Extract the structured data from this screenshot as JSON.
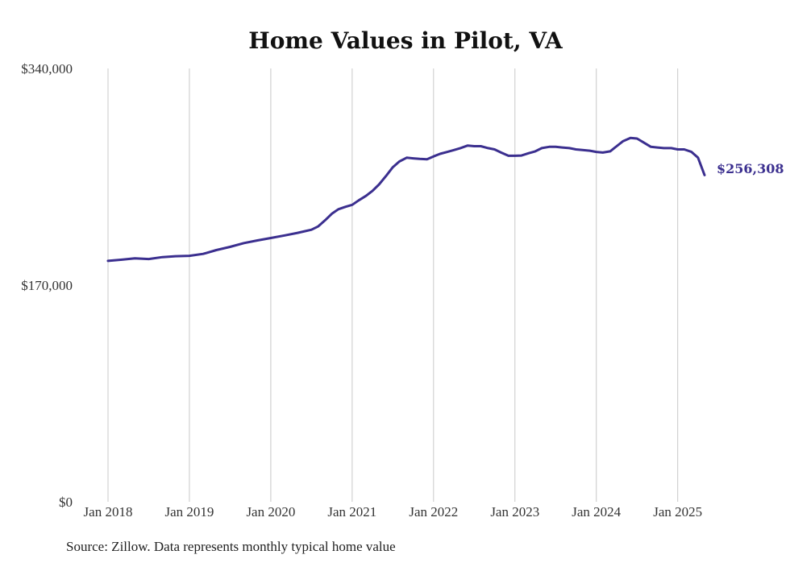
{
  "chart_data": {
    "type": "line",
    "title": "Home Values in Pilot, VA",
    "source_note": "Source: Zillow. Data represents monthly typical home value",
    "ylim": [
      0,
      340000
    ],
    "y_ticks": [
      {
        "value": 0,
        "label": "$0"
      },
      {
        "value": 170000,
        "label": "$170,000"
      },
      {
        "value": 340000,
        "label": "$340,000"
      }
    ],
    "x_ticks": [
      {
        "value": 2018.0,
        "label": "Jan 2018"
      },
      {
        "value": 2019.0,
        "label": "Jan 2019"
      },
      {
        "value": 2020.0,
        "label": "Jan 2020"
      },
      {
        "value": 2021.0,
        "label": "Jan 2021"
      },
      {
        "value": 2022.0,
        "label": "Jan 2022"
      },
      {
        "value": 2023.0,
        "label": "Jan 2023"
      },
      {
        "value": 2024.0,
        "label": "Jan 2024"
      },
      {
        "value": 2025.0,
        "label": "Jan 2025"
      }
    ],
    "xlim": [
      2018.0,
      2025.33
    ],
    "grid": "vertical",
    "line_color": "#3b2f8f",
    "end_label": "$256,308",
    "series": [
      {
        "x": [
          2018.0,
          2018.17,
          2018.33,
          2018.5,
          2018.67,
          2018.83,
          2019.0,
          2019.17,
          2019.33,
          2019.5,
          2019.67,
          2019.83,
          2020.0,
          2020.17,
          2020.33,
          2020.5,
          2020.58,
          2020.67,
          2020.75,
          2020.83,
          2020.92,
          2021.0,
          2021.08,
          2021.17,
          2021.25,
          2021.33,
          2021.42,
          2021.5,
          2021.58,
          2021.67,
          2021.75,
          2021.83,
          2021.92,
          2022.0,
          2022.08,
          2022.17,
          2022.25,
          2022.33,
          2022.42,
          2022.5,
          2022.58,
          2022.67,
          2022.75,
          2022.83,
          2022.92,
          2023.0,
          2023.08,
          2023.17,
          2023.25,
          2023.33,
          2023.42,
          2023.5,
          2023.58,
          2023.67,
          2023.75,
          2023.83,
          2023.92,
          2024.0,
          2024.08,
          2024.17,
          2024.25,
          2024.33,
          2024.42,
          2024.5,
          2024.58,
          2024.67,
          2024.75,
          2024.83,
          2024.92,
          2025.0,
          2025.08,
          2025.17,
          2025.25,
          2025.33
        ],
        "values": [
          189000,
          190000,
          191000,
          190500,
          192000,
          192700,
          193000,
          194500,
          197500,
          200000,
          203000,
          205000,
          207000,
          209000,
          211000,
          213500,
          216000,
          221000,
          226000,
          229500,
          231500,
          233000,
          236500,
          240000,
          244000,
          249000,
          256000,
          262500,
          267000,
          270000,
          269500,
          269000,
          268700,
          271000,
          273000,
          274500,
          276000,
          277500,
          279500,
          279000,
          279000,
          277500,
          276500,
          274000,
          271500,
          271500,
          271700,
          273500,
          275000,
          277500,
          278500,
          278500,
          278000,
          277500,
          276500,
          276000,
          275500,
          274500,
          274000,
          275000,
          279000,
          283000,
          285500,
          285000,
          282000,
          278500,
          278000,
          277500,
          277500,
          276500,
          276500,
          274500,
          270000,
          256308
        ]
      }
    ]
  }
}
